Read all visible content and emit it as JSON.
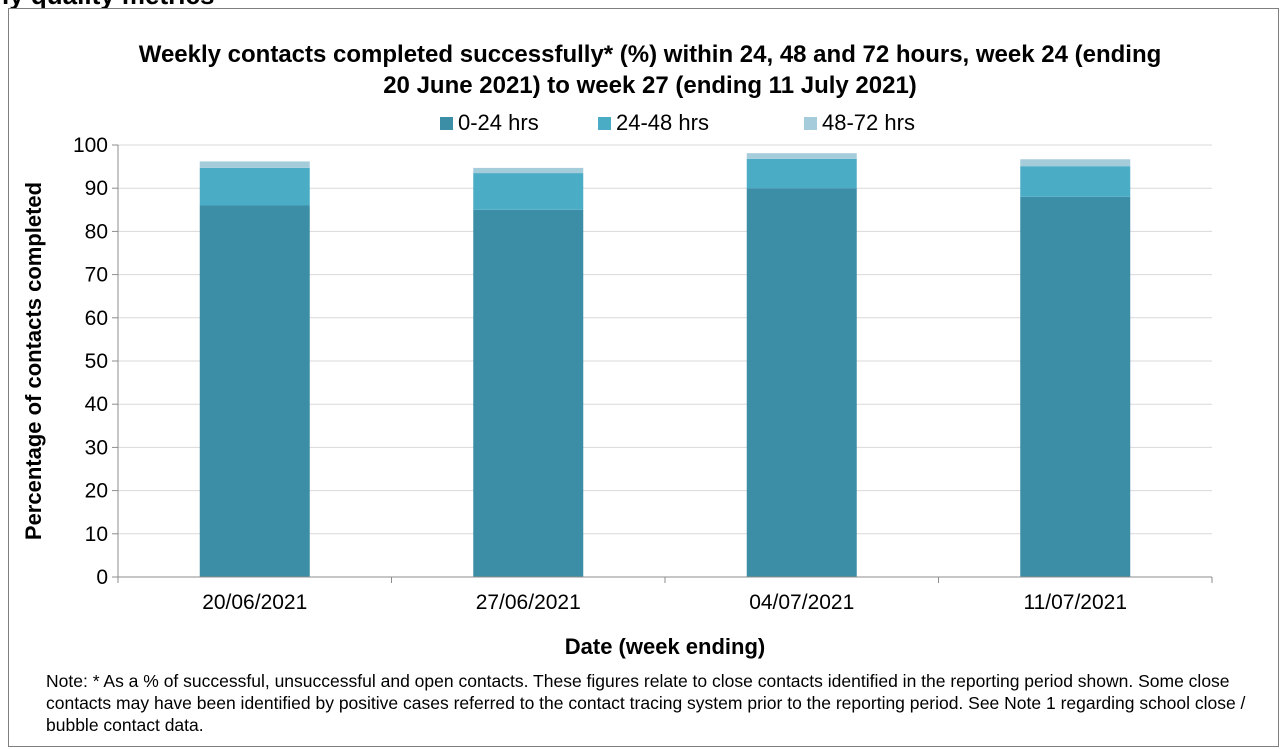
{
  "header": {
    "cutoff_text": "ly quality metrics"
  },
  "chart_data": {
    "type": "bar",
    "stacked": true,
    "title": "Weekly contacts completed successfully* (%) within 24, 48 and 72 hours, week 24 (ending 20 June 2021) to week 27 (ending 11 July 2021)",
    "xlabel": "Date (week ending)",
    "ylabel": "Percentage of contacts completed",
    "ylim": [
      0,
      100
    ],
    "yticks": [
      0,
      10,
      20,
      30,
      40,
      50,
      60,
      70,
      80,
      90,
      100
    ],
    "grid": true,
    "legend_position": "top",
    "categories": [
      "20/06/2021",
      "27/06/2021",
      "04/07/2021",
      "11/07/2021"
    ],
    "series": [
      {
        "name": "0-24 hrs",
        "color": "#3b8ea5",
        "values": [
          86,
          85,
          90,
          88
        ]
      },
      {
        "name": "24-48 hrs",
        "color": "#4bacc6",
        "values": [
          8.7,
          8.5,
          6.8,
          7.1
        ]
      },
      {
        "name": "48-72 hrs",
        "color": "#a5ccdb",
        "values": [
          1.5,
          1.2,
          1.3,
          1.6
        ]
      }
    ]
  },
  "note": "Note: * As a % of successful, unsuccessful and open contacts. These figures relate to close contacts identified in the reporting period shown. Some close contacts may have been identified by positive cases referred to the contact tracing system prior to the reporting period. See Note 1 regarding school close / bubble contact data."
}
